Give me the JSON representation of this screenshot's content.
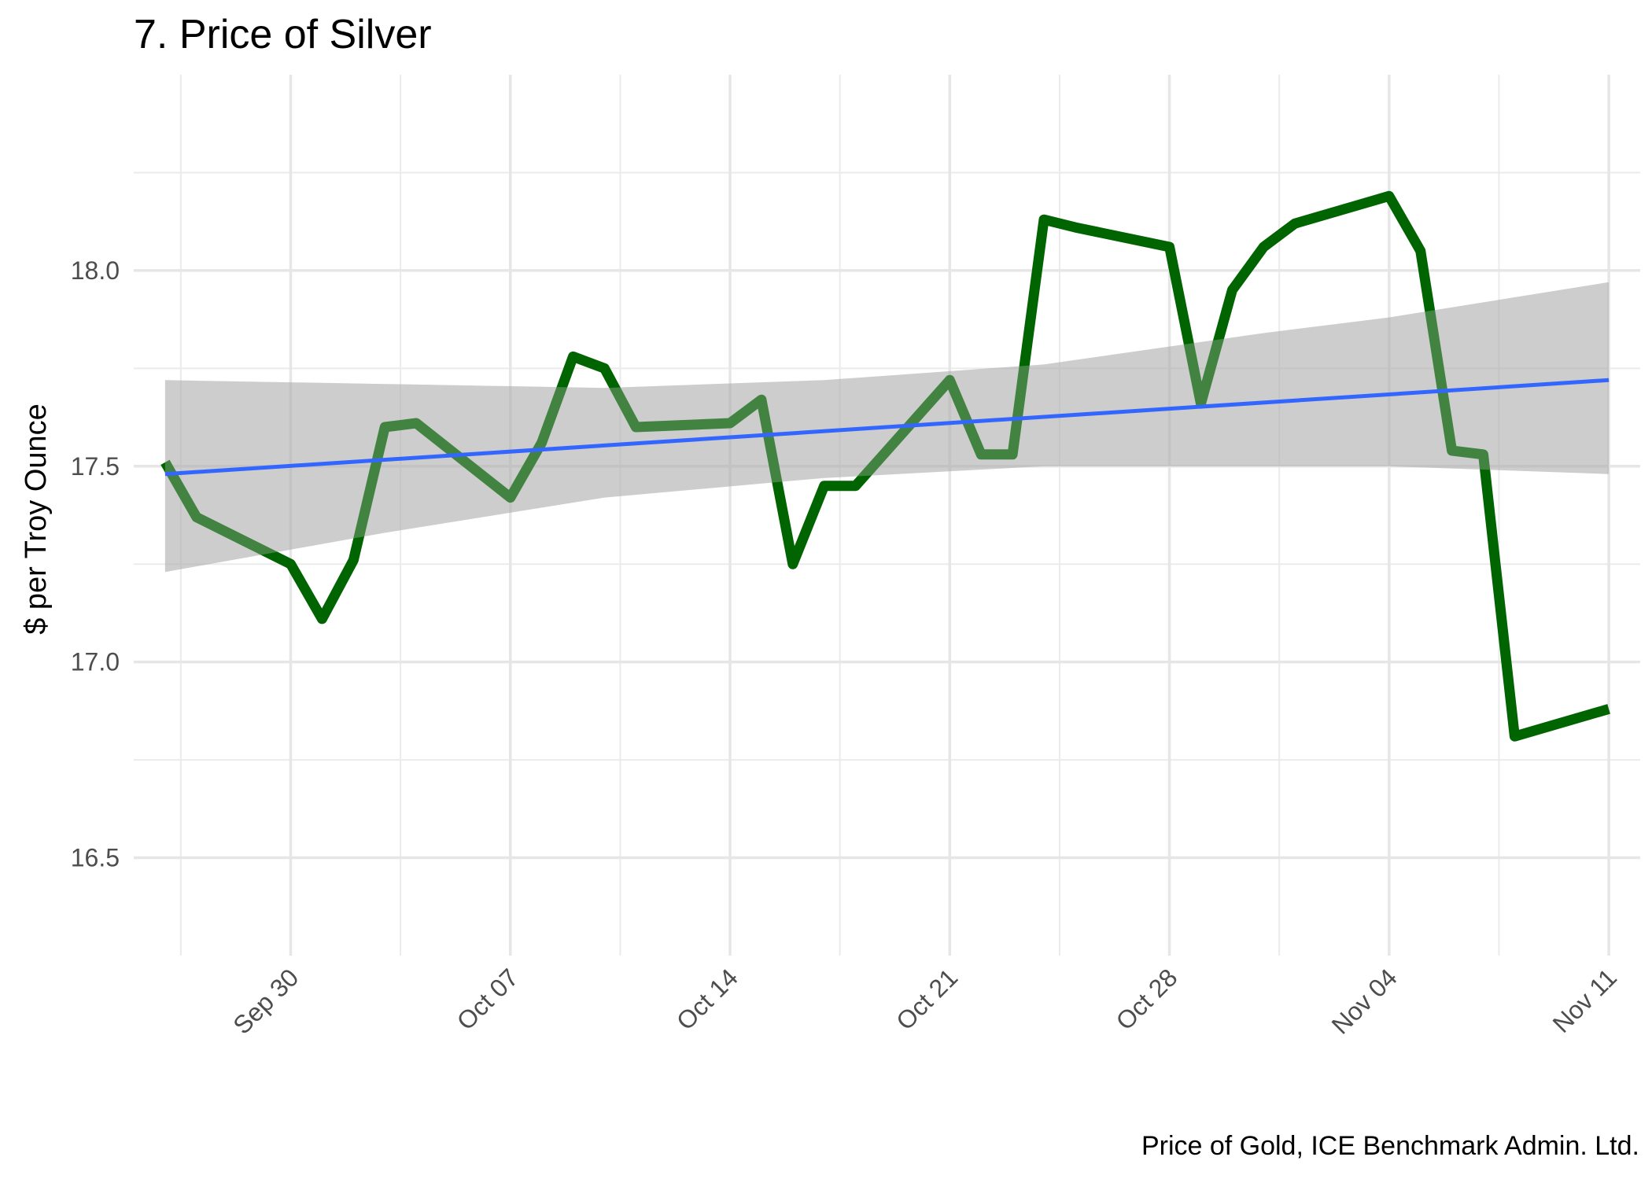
{
  "chart_data": {
    "type": "line",
    "title": "7. Price of Silver",
    "caption": "Price of Gold, ICE Benchmark Admin. Ltd.",
    "xlabel": "",
    "ylabel": "$ per Troy Ounce",
    "ylim": [
      16.25,
      18.5
    ],
    "xlim": [
      "2019-09-25",
      "2019-11-12"
    ],
    "y_ticks": [
      16.5,
      17.0,
      17.5,
      18.0
    ],
    "y_tick_labels": [
      "16.5",
      "17.0",
      "17.5",
      "18.0"
    ],
    "x_ticks": [
      "2019-09-30",
      "2019-10-07",
      "2019-10-14",
      "2019-10-21",
      "2019-10-28",
      "2019-11-04",
      "2019-11-11"
    ],
    "x_tick_labels": [
      "Sep 30",
      "Oct 07",
      "Oct 14",
      "Oct 21",
      "Oct 28",
      "Nov 04",
      "Nov 11"
    ],
    "grid": true,
    "legend": "none",
    "series": [
      {
        "color": "#006400",
        "x": [
          "2019-09-26",
          "2019-09-27",
          "2019-09-30",
          "2019-10-01",
          "2019-10-02",
          "2019-10-03",
          "2019-10-04",
          "2019-10-07",
          "2019-10-08",
          "2019-10-09",
          "2019-10-10",
          "2019-10-11",
          "2019-10-14",
          "2019-10-15",
          "2019-10-16",
          "2019-10-17",
          "2019-10-18",
          "2019-10-21",
          "2019-10-22",
          "2019-10-23",
          "2019-10-24",
          "2019-10-25",
          "2019-10-28",
          "2019-10-29",
          "2019-10-30",
          "2019-10-31",
          "2019-11-01",
          "2019-11-04",
          "2019-11-05",
          "2019-11-06",
          "2019-11-07",
          "2019-11-08",
          "2019-11-11"
        ],
        "y": [
          17.51,
          17.37,
          17.25,
          17.11,
          17.26,
          17.6,
          17.61,
          17.42,
          17.56,
          17.78,
          17.75,
          17.6,
          17.61,
          17.67,
          17.25,
          17.45,
          17.45,
          17.72,
          17.53,
          17.53,
          18.13,
          18.11,
          18.06,
          17.66,
          17.95,
          18.06,
          18.12,
          18.19,
          18.05,
          17.54,
          17.53,
          16.81,
          16.88
        ]
      }
    ],
    "trend": {
      "color": "#3366ff",
      "x": [
        "2019-09-26",
        "2019-11-11"
      ],
      "y": [
        17.48,
        17.72
      ],
      "band": {
        "color": "#999999",
        "x": [
          "2019-09-26",
          "2019-10-03",
          "2019-10-10",
          "2019-10-17",
          "2019-10-24",
          "2019-10-31",
          "2019-11-04",
          "2019-11-11"
        ],
        "lower": [
          17.23,
          17.33,
          17.42,
          17.47,
          17.5,
          17.5,
          17.5,
          17.48
        ],
        "upper": [
          17.72,
          17.71,
          17.7,
          17.72,
          17.76,
          17.84,
          17.88,
          17.97
        ]
      }
    }
  }
}
